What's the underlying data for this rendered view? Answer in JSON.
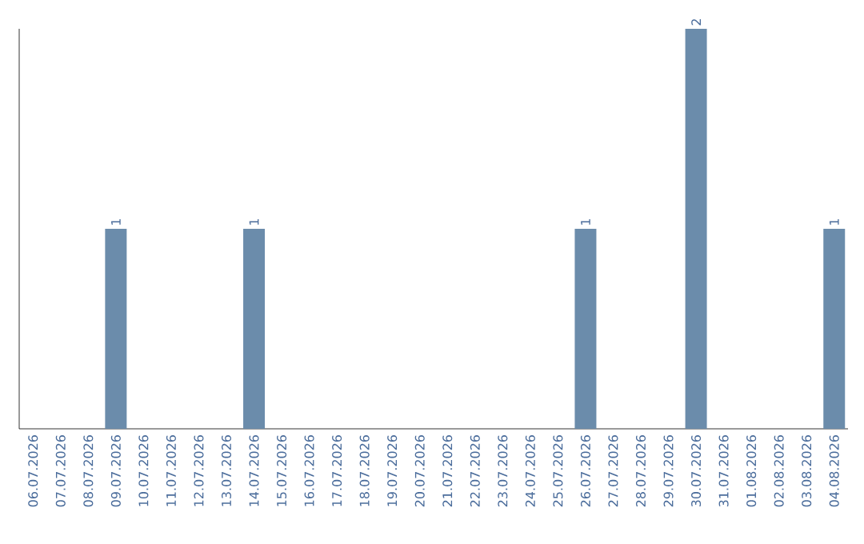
{
  "chart_data": {
    "type": "bar",
    "color": "#6b8cab",
    "categories": [
      "06.07.2026",
      "07.07.2026",
      "08.07.2026",
      "09.07.2026",
      "10.07.2026",
      "11.07.2026",
      "12.07.2026",
      "13.07.2026",
      "14.07.2026",
      "15.07.2026",
      "16.07.2026",
      "17.07.2026",
      "18.07.2026",
      "19.07.2026",
      "20.07.2026",
      "21.07.2026",
      "22.07.2026",
      "23.07.2026",
      "24.07.2026",
      "25.07.2026",
      "26.07.2026",
      "27.07.2026",
      "28.07.2026",
      "29.07.2026",
      "30.07.2026",
      "31.07.2026",
      "01.08.2026",
      "02.08.2026",
      "03.08.2026",
      "04.08.2026"
    ],
    "values": [
      0,
      0,
      0,
      1,
      0,
      0,
      0,
      0,
      1,
      0,
      0,
      0,
      0,
      0,
      0,
      0,
      0,
      0,
      0,
      0,
      1,
      0,
      0,
      0,
      2,
      0,
      0,
      0,
      0,
      1
    ],
    "value_labels": [
      null,
      null,
      null,
      "1",
      null,
      null,
      null,
      null,
      "1",
      null,
      null,
      null,
      null,
      null,
      null,
      null,
      null,
      null,
      null,
      null,
      "1",
      null,
      null,
      null,
      "2",
      null,
      null,
      null,
      null,
      "1"
    ],
    "grid": false
  }
}
